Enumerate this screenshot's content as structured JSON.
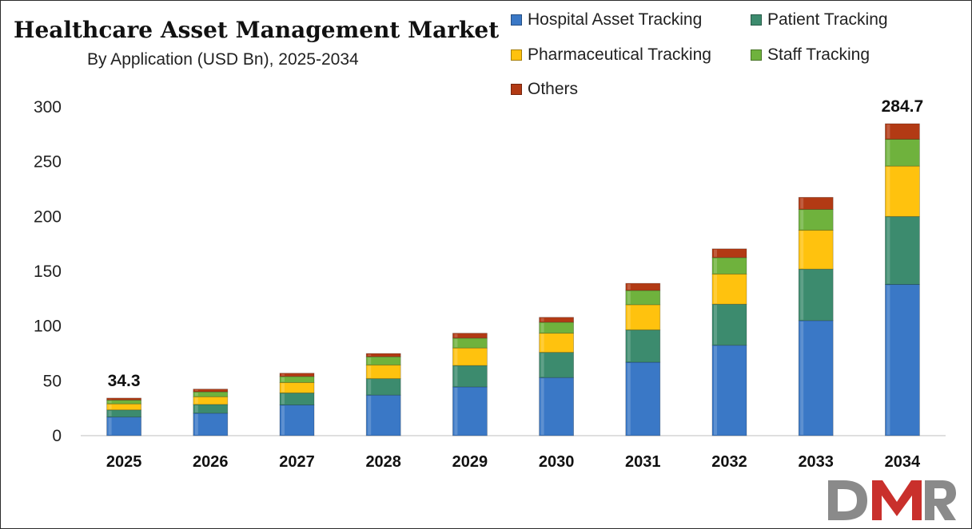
{
  "chart_data": {
    "type": "bar",
    "stacked": true,
    "title": "Healthcare Asset Management Market",
    "subtitle": "By Application (USD Bn), 2025-2034",
    "xlabel": "",
    "ylabel": "",
    "ylim": [
      0,
      300
    ],
    "yticks": [
      0,
      50,
      100,
      150,
      200,
      250,
      300
    ],
    "grid": false,
    "legend_position": "top-right",
    "categories": [
      "2025",
      "2026",
      "2027",
      "2028",
      "2029",
      "2030",
      "2031",
      "2032",
      "2033",
      "2034"
    ],
    "series": [
      {
        "name": "Hospital Asset Tracking",
        "color": "#3a78c6",
        "values": [
          17.0,
          20.5,
          28.0,
          37.0,
          44.5,
          53.0,
          67.0,
          82.5,
          105.0,
          138.0
        ]
      },
      {
        "name": "Patient Tracking",
        "color": "#3c8b6e",
        "values": [
          6.5,
          8.0,
          11.0,
          15.0,
          19.5,
          23.0,
          29.5,
          37.5,
          47.0,
          62.0
        ]
      },
      {
        "name": "Pharmaceutical Tracking",
        "color": "#ffc20e",
        "values": [
          5.5,
          7.0,
          9.5,
          12.5,
          16.0,
          17.5,
          23.0,
          27.5,
          35.5,
          46.0
        ]
      },
      {
        "name": "Staff Tracking",
        "color": "#6fb23d",
        "values": [
          3.5,
          4.5,
          5.5,
          7.5,
          9.0,
          10.0,
          13.0,
          15.0,
          19.0,
          24.5
        ]
      },
      {
        "name": "Others",
        "color": "#b23a14",
        "values": [
          1.8,
          2.5,
          3.0,
          3.0,
          4.5,
          4.5,
          6.5,
          8.0,
          11.0,
          14.2
        ]
      }
    ],
    "annotations": [
      {
        "category": "2025",
        "label": "34.3"
      },
      {
        "category": "2034",
        "label": "284.7"
      }
    ]
  },
  "branding": {
    "logo_text": "DMR",
    "logo_colors": [
      "#888888",
      "#c9302c"
    ]
  }
}
